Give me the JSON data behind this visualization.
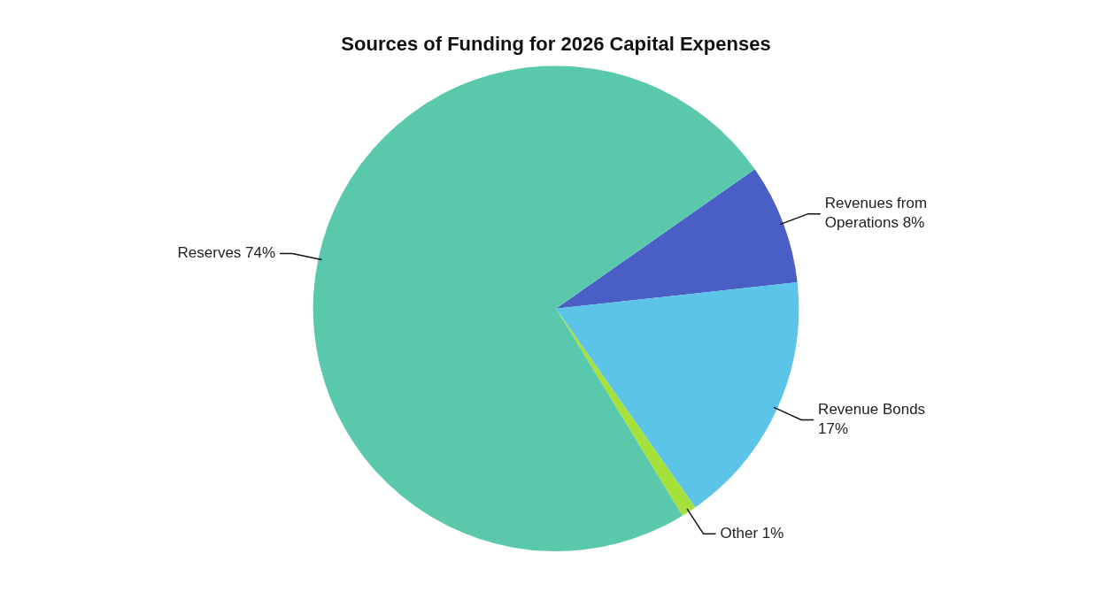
{
  "chart_data": {
    "type": "pie",
    "title": "Sources of Funding for 2026 Capital Expenses",
    "categories": [
      "Revenues from Operations",
      "Revenue Bonds",
      "Other",
      "Reserves"
    ],
    "values": [
      8,
      17,
      1,
      74
    ],
    "colors": [
      "#4a5fc6",
      "#5bc4e8",
      "#a6e03a",
      "#5ac8ab"
    ],
    "value_labels": [
      "8%",
      "17%",
      "1%",
      "74%"
    ],
    "legend": false
  }
}
